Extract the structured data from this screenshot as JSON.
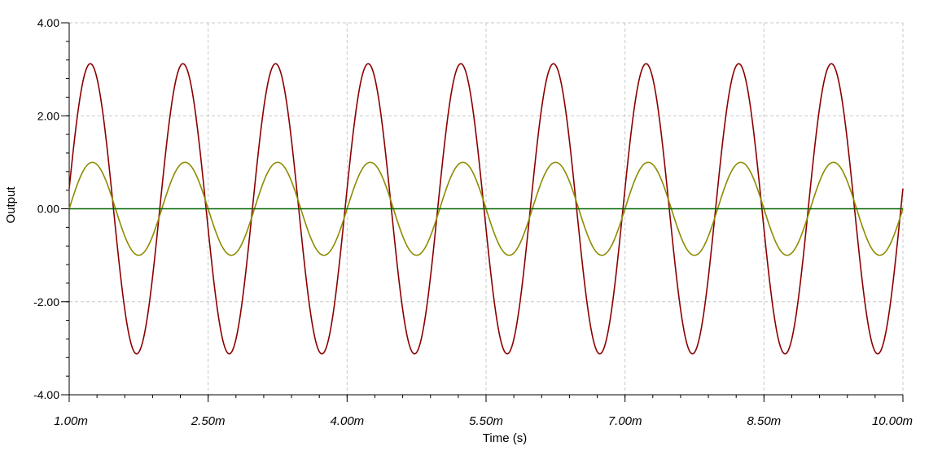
{
  "chart_data": {
    "type": "line",
    "xlabel": "Time (s)",
    "ylabel": "Output",
    "xlim": [
      0.001,
      0.01
    ],
    "ylim": [
      -4,
      4
    ],
    "x_ticks": [
      {
        "value": 0.001,
        "label": "1.00m"
      },
      {
        "value": 0.0025,
        "label": "2.50m"
      },
      {
        "value": 0.004,
        "label": "4.00m"
      },
      {
        "value": 0.0055,
        "label": "5.50m"
      },
      {
        "value": 0.007,
        "label": "7.00m"
      },
      {
        "value": 0.0085,
        "label": "8.50m"
      },
      {
        "value": 0.01,
        "label": "10.00m"
      }
    ],
    "y_ticks": [
      {
        "value": 4,
        "label": "4.00"
      },
      {
        "value": 2,
        "label": "2.00"
      },
      {
        "value": 0,
        "label": "0.00"
      },
      {
        "value": -2,
        "label": "-2.00"
      },
      {
        "value": -4,
        "label": "-4.00"
      }
    ],
    "grid": true,
    "series": [
      {
        "color": "#8b0000",
        "shape": "sine",
        "amplitude": 3.12,
        "frequency_hz": 1000,
        "phase_deg": 8,
        "x_start": 0.001,
        "x_end": 0.01
      },
      {
        "color": "#8c8c00",
        "shape": "sine",
        "amplitude": 1.0,
        "frequency_hz": 1000,
        "phase_deg": 0,
        "x_start": 0.001,
        "x_end": 0.01
      },
      {
        "color": "#006400",
        "shape": "constant",
        "value": 0,
        "x_start": 0.001,
        "x_end": 0.01
      }
    ]
  }
}
